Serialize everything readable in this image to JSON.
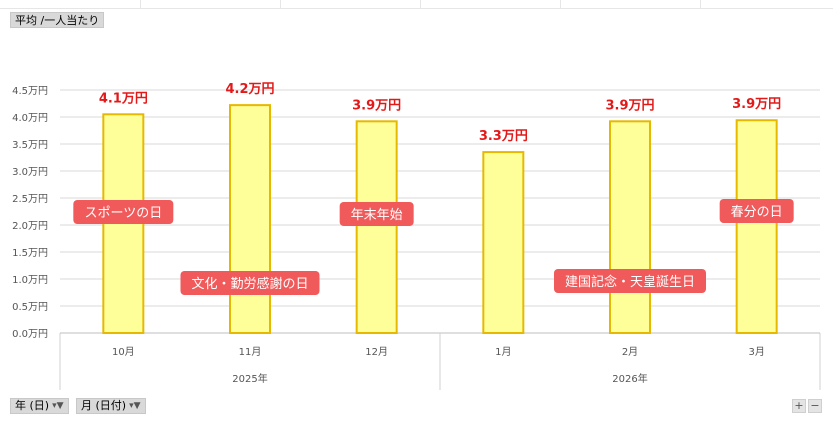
{
  "header": {
    "value_button": "平均 /一人当たり"
  },
  "filters": [
    {
      "label": "年 (日)"
    },
    {
      "label": "月 (日付)"
    }
  ],
  "zoom": {
    "plus": "+",
    "minus": "−"
  },
  "chart_data": {
    "type": "bar",
    "title": "",
    "xlabel": "",
    "ylabel": "",
    "ylim": [
      0,
      4.5
    ],
    "ytick_step": 0.5,
    "ytick_suffix": "万円",
    "grid": true,
    "categories": [
      "10月",
      "11月",
      "12月",
      "1月",
      "2月",
      "3月"
    ],
    "groups": [
      {
        "label": "2025年",
        "span": 3
      },
      {
        "label": "2026年",
        "span": 3
      }
    ],
    "values": [
      4.05,
      4.22,
      3.92,
      3.35,
      3.92,
      3.94
    ],
    "data_labels": [
      "4.1万円",
      "4.2万円",
      "3.9万円",
      "3.3万円",
      "3.9万円",
      "3.9万円"
    ],
    "bar_fill": "#ffff99",
    "bar_stroke": "#e6b800",
    "annotations": [
      {
        "text": "スポーツの日",
        "category": "10月"
      },
      {
        "text": "文化・勤労感謝の日",
        "category": "11月"
      },
      {
        "text": "年末年始",
        "category": "12月"
      },
      {
        "text": "建国記念・天皇誕生日",
        "category": "2月"
      },
      {
        "text": "春分の日",
        "category": "3月"
      }
    ],
    "annotation_color": "#f15a5a"
  }
}
